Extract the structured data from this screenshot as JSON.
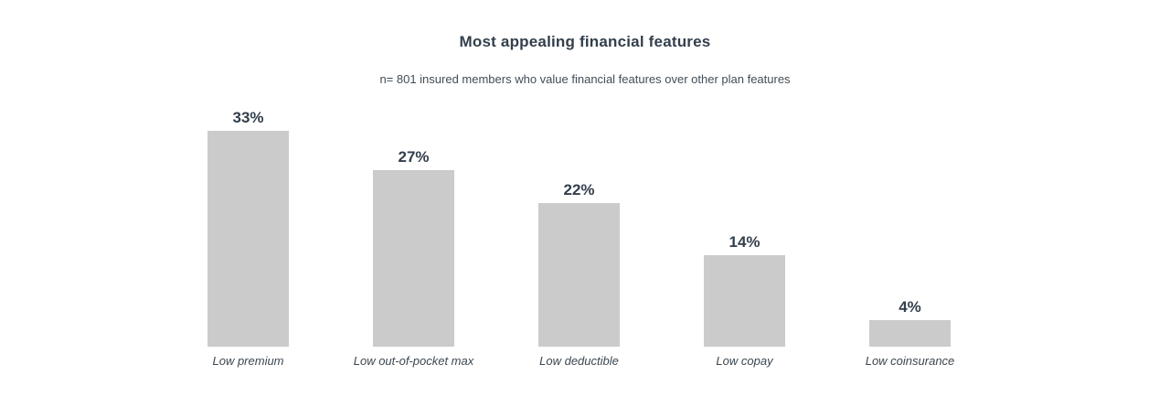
{
  "chart_data": {
    "type": "bar",
    "title": "Most appealing financial features",
    "subtitle": "n= 801 insured members who value financial features over other plan features",
    "categories": [
      "Low premium",
      "Low out-of-pocket max",
      "Low deductible",
      "Low copay",
      "Low coinsurance"
    ],
    "values": [
      33,
      27,
      22,
      14,
      4
    ],
    "value_labels": [
      "33%",
      "27%",
      "22%",
      "14%",
      "4%"
    ],
    "unit": "%",
    "ylim": [
      0,
      35
    ],
    "grid": false,
    "axes_visible": false,
    "legend": "none",
    "bar_color": "#cbcbcb",
    "title_color": "#333f4c",
    "subtitle_color": "#414d58",
    "value_label_color": "#333f4c",
    "category_label_color": "#3c4750",
    "background_color": "#ffffff"
  }
}
